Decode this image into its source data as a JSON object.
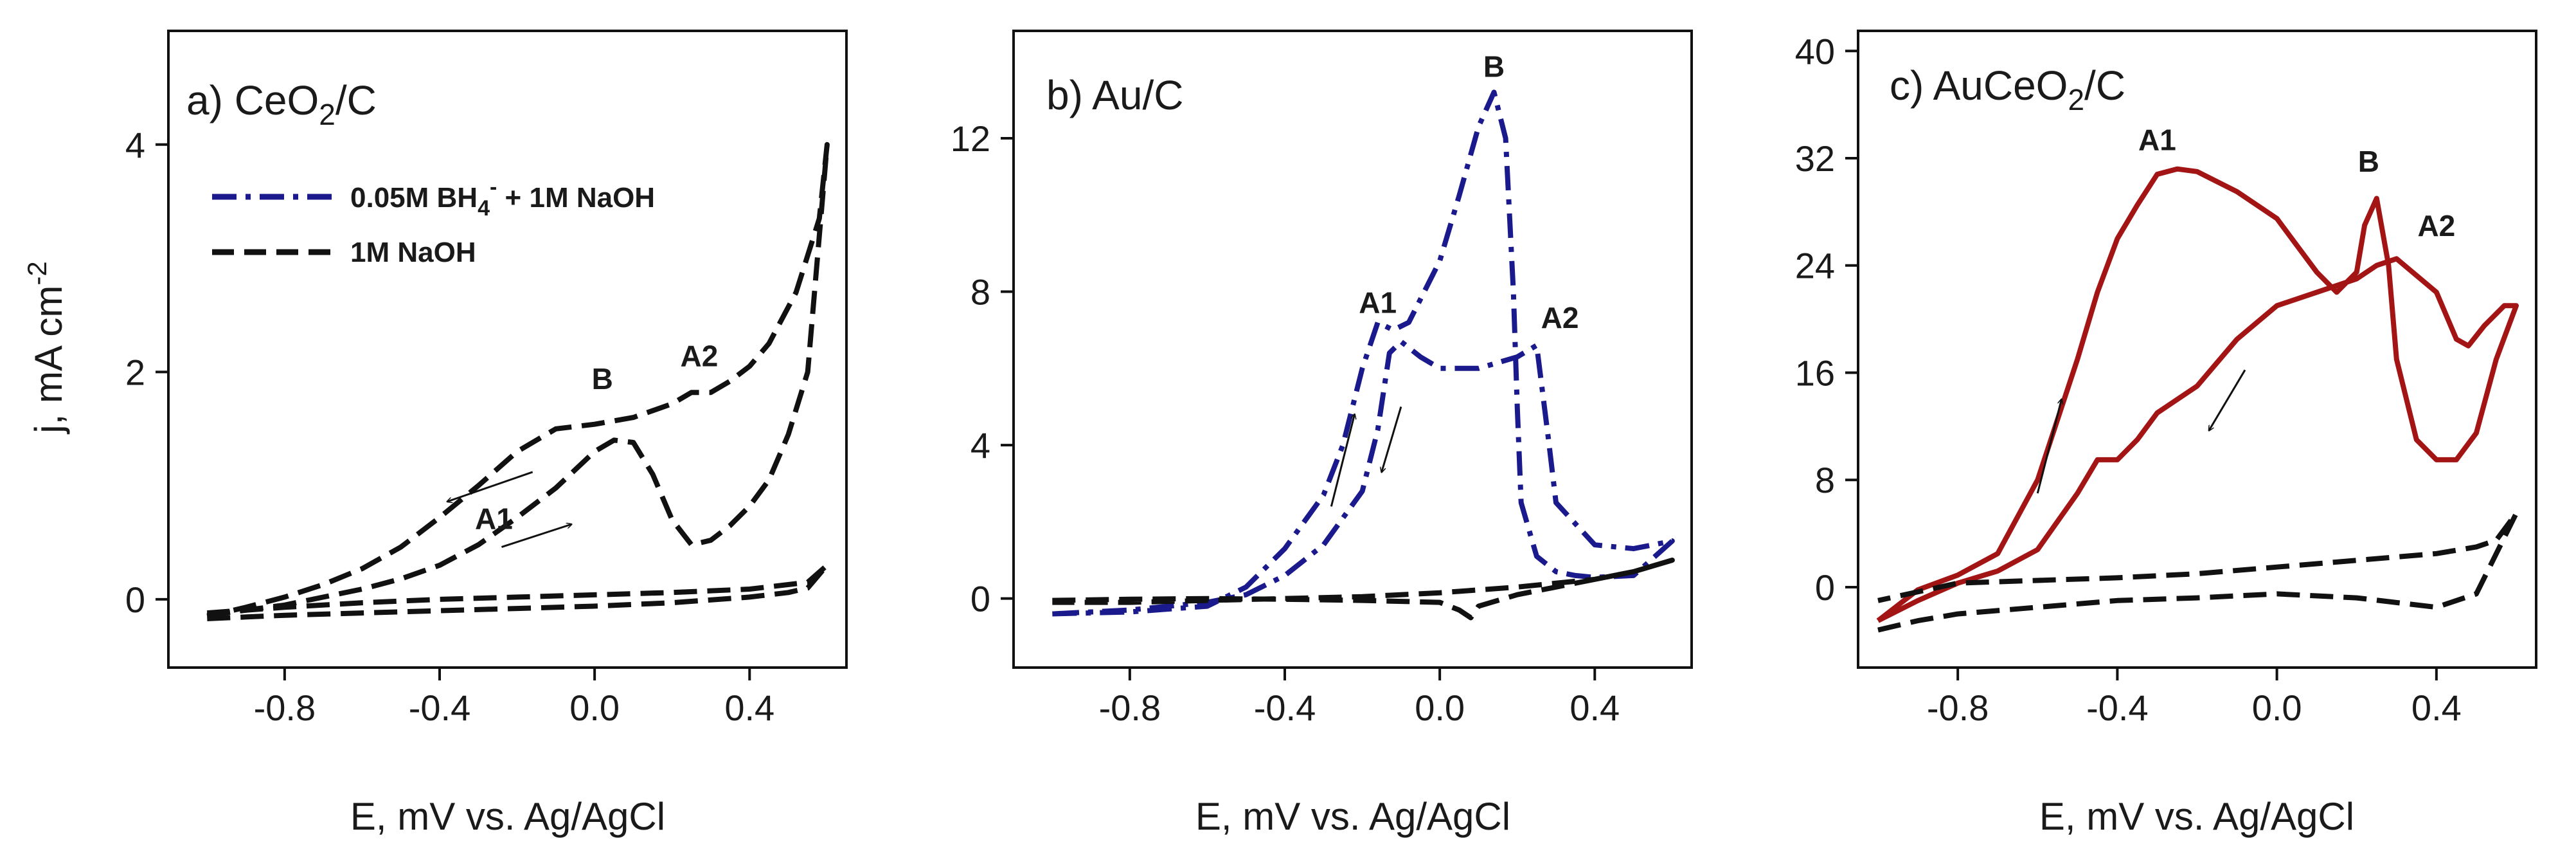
{
  "chart_data": [
    {
      "type": "line",
      "panel": "a",
      "title_main": "a) CeO",
      "title_sub": "2",
      "title_tail": "/C",
      "xlabel": "E, mV vs. Ag/AgCl",
      "ylabel_main": "j, mA cm",
      "ylabel_sup": "-2",
      "xlim": [
        -1.1,
        0.65
      ],
      "ylim": [
        -0.6,
        5.0
      ],
      "xticks": [
        "-0.8",
        "-0.4",
        "0.0",
        "0.4"
      ],
      "xtick_values": [
        -0.8,
        -0.4,
        0.0,
        0.4
      ],
      "yticks": [
        "0",
        "2",
        "4"
      ],
      "ytick_values": [
        0,
        2,
        4
      ],
      "legend": {
        "series1_main": "0.05M BH",
        "series1_sub": "4",
        "series1_sup": "-",
        "series1_tail": " + 1M NaOH",
        "series2": "1M NaOH"
      },
      "peak_labels": [
        {
          "text": "B",
          "x": 0.02,
          "y": 1.85
        },
        {
          "text": "A2",
          "x": 0.27,
          "y": 2.05
        },
        {
          "text": "A1",
          "x": -0.26,
          "y": 0.62
        }
      ],
      "arrows": [
        {
          "direction": "cathodic",
          "from": [
            -0.16,
            1.12
          ],
          "to": [
            -0.38,
            0.86
          ]
        },
        {
          "direction": "anodic",
          "from": [
            -0.24,
            0.46
          ],
          "to": [
            -0.06,
            0.66
          ]
        }
      ],
      "series": [
        {
          "name": "0.05M BH4- + 1M NaOH",
          "style": "dash",
          "color": "#111111",
          "x": [
            -1.0,
            -0.8,
            -0.6,
            -0.5,
            -0.4,
            -0.3,
            -0.2,
            -0.1,
            0.0,
            0.05,
            0.1,
            0.15,
            0.2,
            0.25,
            0.3,
            0.35,
            0.4,
            0.45,
            0.5,
            0.55,
            0.6,
            0.58,
            0.52,
            0.45,
            0.4,
            0.35,
            0.3,
            0.25,
            0.2,
            0.1,
            0.0,
            -0.1,
            -0.2,
            -0.3,
            -0.4,
            -0.5,
            -0.6,
            -0.7,
            -0.8,
            -0.9,
            -1.0
          ],
          "y": [
            -0.14,
            -0.05,
            0.09,
            0.18,
            0.3,
            0.48,
            0.72,
            0.98,
            1.3,
            1.4,
            1.38,
            1.1,
            0.7,
            0.48,
            0.52,
            0.65,
            0.82,
            1.05,
            1.45,
            2.0,
            4.0,
            3.35,
            2.7,
            2.25,
            2.05,
            1.92,
            1.82,
            1.82,
            1.72,
            1.6,
            1.54,
            1.5,
            1.3,
            1.0,
            0.72,
            0.46,
            0.27,
            0.13,
            0.02,
            -0.07,
            -0.15
          ]
        },
        {
          "name": "1M NaOH",
          "style": "dash",
          "color": "#111111",
          "x": [
            -1.0,
            -0.8,
            -0.6,
            -0.4,
            -0.2,
            0.0,
            0.2,
            0.4,
            0.5,
            0.55,
            0.6,
            0.55,
            0.4,
            0.2,
            0.0,
            -0.2,
            -0.4,
            -0.6,
            -0.8,
            -1.0
          ],
          "y": [
            -0.17,
            -0.14,
            -0.12,
            -0.1,
            -0.08,
            -0.06,
            -0.03,
            0.02,
            0.06,
            0.1,
            0.3,
            0.15,
            0.09,
            0.06,
            0.04,
            0.02,
            0.0,
            -0.03,
            -0.07,
            -0.12
          ]
        }
      ]
    },
    {
      "type": "line",
      "panel": "b",
      "title": "b) Au/C",
      "xlabel": "E, mV vs. Ag/AgCl",
      "xlim": [
        -1.1,
        0.65
      ],
      "ylim": [
        -1.8,
        14.8
      ],
      "xticks": [
        "-0.8",
        "-0.4",
        "0.0",
        "0.4"
      ],
      "xtick_values": [
        -0.8,
        -0.4,
        0.0,
        0.4
      ],
      "yticks": [
        "0",
        "4",
        "8",
        "12"
      ],
      "ytick_values": [
        0,
        4,
        8,
        12
      ],
      "peak_labels": [
        {
          "text": "B",
          "x": 0.14,
          "y": 13.6
        },
        {
          "text": "A1",
          "x": -0.16,
          "y": 7.45
        },
        {
          "text": "A2",
          "x": 0.31,
          "y": 7.05
        }
      ],
      "arrows": [
        {
          "direction": "anodic",
          "from": [
            -0.28,
            2.4
          ],
          "to": [
            -0.22,
            4.8
          ]
        },
        {
          "direction": "cathodic",
          "from": [
            -0.1,
            5.0
          ],
          "to": [
            -0.15,
            3.3
          ]
        }
      ],
      "series": [
        {
          "name": "0.05M BH4- + 1M NaOH",
          "style": "dashdot",
          "color": "#1a1a8c",
          "x": [
            -1.0,
            -0.8,
            -0.6,
            -0.5,
            -0.4,
            -0.3,
            -0.25,
            -0.2,
            -0.16,
            -0.12,
            -0.08,
            0.0,
            0.05,
            0.1,
            0.14,
            0.17,
            0.19,
            0.2,
            0.21,
            0.25,
            0.3,
            0.35,
            0.4,
            0.5,
            0.6,
            0.5,
            0.4,
            0.3,
            0.28,
            0.25,
            0.2,
            0.1,
            0.0,
            -0.05,
            -0.1,
            -0.13,
            -0.16,
            -0.2,
            -0.3,
            -0.4,
            -0.5,
            -0.6,
            -0.8,
            -1.0
          ],
          "y": [
            -0.4,
            -0.35,
            -0.2,
            0.3,
            1.3,
            2.7,
            4.0,
            6.0,
            7.2,
            7.0,
            7.2,
            8.8,
            10.5,
            12.3,
            13.2,
            12.0,
            8.0,
            5.0,
            2.5,
            1.1,
            0.7,
            0.6,
            0.55,
            0.6,
            1.5,
            1.3,
            1.4,
            2.5,
            4.2,
            6.6,
            6.3,
            6.0,
            6.0,
            6.3,
            6.7,
            6.4,
            4.4,
            2.8,
            1.4,
            0.6,
            0.1,
            -0.1,
            -0.3,
            -0.4
          ]
        },
        {
          "name": "1M NaOH",
          "style": "dash",
          "color": "#111111",
          "x": [
            -1.0,
            -0.8,
            -0.6,
            -0.4,
            -0.2,
            0.0,
            0.05,
            0.08,
            0.1,
            0.2,
            0.3,
            0.4,
            0.5,
            0.6,
            0.5,
            0.4,
            0.2,
            0.0,
            -0.2,
            -0.4,
            -0.6,
            -0.8,
            -1.0
          ],
          "y": [
            -0.05,
            -0.02,
            0.0,
            -0.02,
            -0.05,
            -0.1,
            -0.3,
            -0.5,
            -0.2,
            0.1,
            0.3,
            0.5,
            0.7,
            1.0,
            0.7,
            0.5,
            0.3,
            0.15,
            0.05,
            0.0,
            -0.05,
            -0.1,
            -0.1
          ]
        }
      ]
    },
    {
      "type": "line",
      "panel": "c",
      "title_main": "c) AuCeO",
      "title_sub": "2",
      "title_tail": "/C",
      "xlabel": "E, mV vs. Ag/AgCl",
      "xlim": [
        -1.05,
        0.65
      ],
      "ylim": [
        -6.0,
        41.5
      ],
      "xticks": [
        "-0.8",
        "-0.4",
        "0.0",
        "0.4"
      ],
      "xtick_values": [
        -0.8,
        -0.4,
        0.0,
        0.4
      ],
      "yticks": [
        "0",
        "8",
        "16",
        "24",
        "32",
        "40"
      ],
      "ytick_values": [
        0,
        8,
        16,
        24,
        32,
        40
      ],
      "peak_labels": [
        {
          "text": "A1",
          "x": -0.3,
          "y": 32.6
        },
        {
          "text": "B",
          "x": 0.23,
          "y": 31.0
        },
        {
          "text": "A2",
          "x": 0.4,
          "y": 26.2
        }
      ],
      "arrows": [
        {
          "direction": "anodic",
          "from": [
            -0.6,
            7.0
          ],
          "to": [
            -0.54,
            14.0
          ]
        },
        {
          "direction": "cathodic",
          "from": [
            -0.08,
            16.2
          ],
          "to": [
            -0.17,
            11.7
          ]
        }
      ],
      "series": [
        {
          "name": "0.05M BH4- + 1M NaOH",
          "style": "solid",
          "color": "#a31515",
          "x": [
            -1.0,
            -0.9,
            -0.8,
            -0.7,
            -0.6,
            -0.5,
            -0.45,
            -0.4,
            -0.35,
            -0.3,
            -0.25,
            -0.2,
            -0.1,
            0.0,
            0.05,
            0.1,
            0.15,
            0.2,
            0.22,
            0.25,
            0.28,
            0.3,
            0.35,
            0.4,
            0.45,
            0.5,
            0.55,
            0.6,
            0.57,
            0.52,
            0.48,
            0.45,
            0.4,
            0.3,
            0.25,
            0.2,
            0.1,
            0.0,
            -0.1,
            -0.2,
            -0.3,
            -0.35,
            -0.4,
            -0.45,
            -0.5,
            -0.6,
            -0.7,
            -0.8,
            -0.9,
            -1.0
          ],
          "y": [
            -2.5,
            -0.2,
            0.9,
            2.5,
            8.0,
            17.0,
            22.0,
            26.0,
            28.5,
            30.8,
            31.2,
            31.0,
            29.5,
            27.5,
            25.5,
            23.5,
            22.0,
            23.5,
            27.0,
            29.0,
            24.0,
            17.0,
            11.0,
            9.5,
            9.5,
            11.5,
            17.0,
            21.0,
            21.0,
            19.5,
            18.0,
            18.5,
            22.0,
            24.5,
            24.0,
            23.0,
            22.0,
            21.0,
            18.5,
            15.0,
            13.0,
            11.0,
            9.5,
            9.5,
            7.0,
            2.8,
            1.2,
            0.3,
            -1.0,
            -2.5
          ]
        },
        {
          "name": "1M NaOH",
          "style": "dash",
          "color": "#111111",
          "x": [
            -1.0,
            -0.9,
            -0.8,
            -0.6,
            -0.4,
            -0.2,
            0.0,
            0.2,
            0.4,
            0.5,
            0.6,
            0.55,
            0.5,
            0.4,
            0.2,
            0.0,
            -0.2,
            -0.4,
            -0.6,
            -0.8,
            -1.0
          ],
          "y": [
            -3.2,
            -2.5,
            -2.0,
            -1.5,
            -1.0,
            -0.8,
            -0.5,
            -0.8,
            -1.5,
            -0.5,
            5.5,
            3.5,
            3.0,
            2.5,
            2.0,
            1.5,
            1.0,
            0.7,
            0.5,
            0.3,
            -1.0
          ]
        }
      ]
    }
  ]
}
